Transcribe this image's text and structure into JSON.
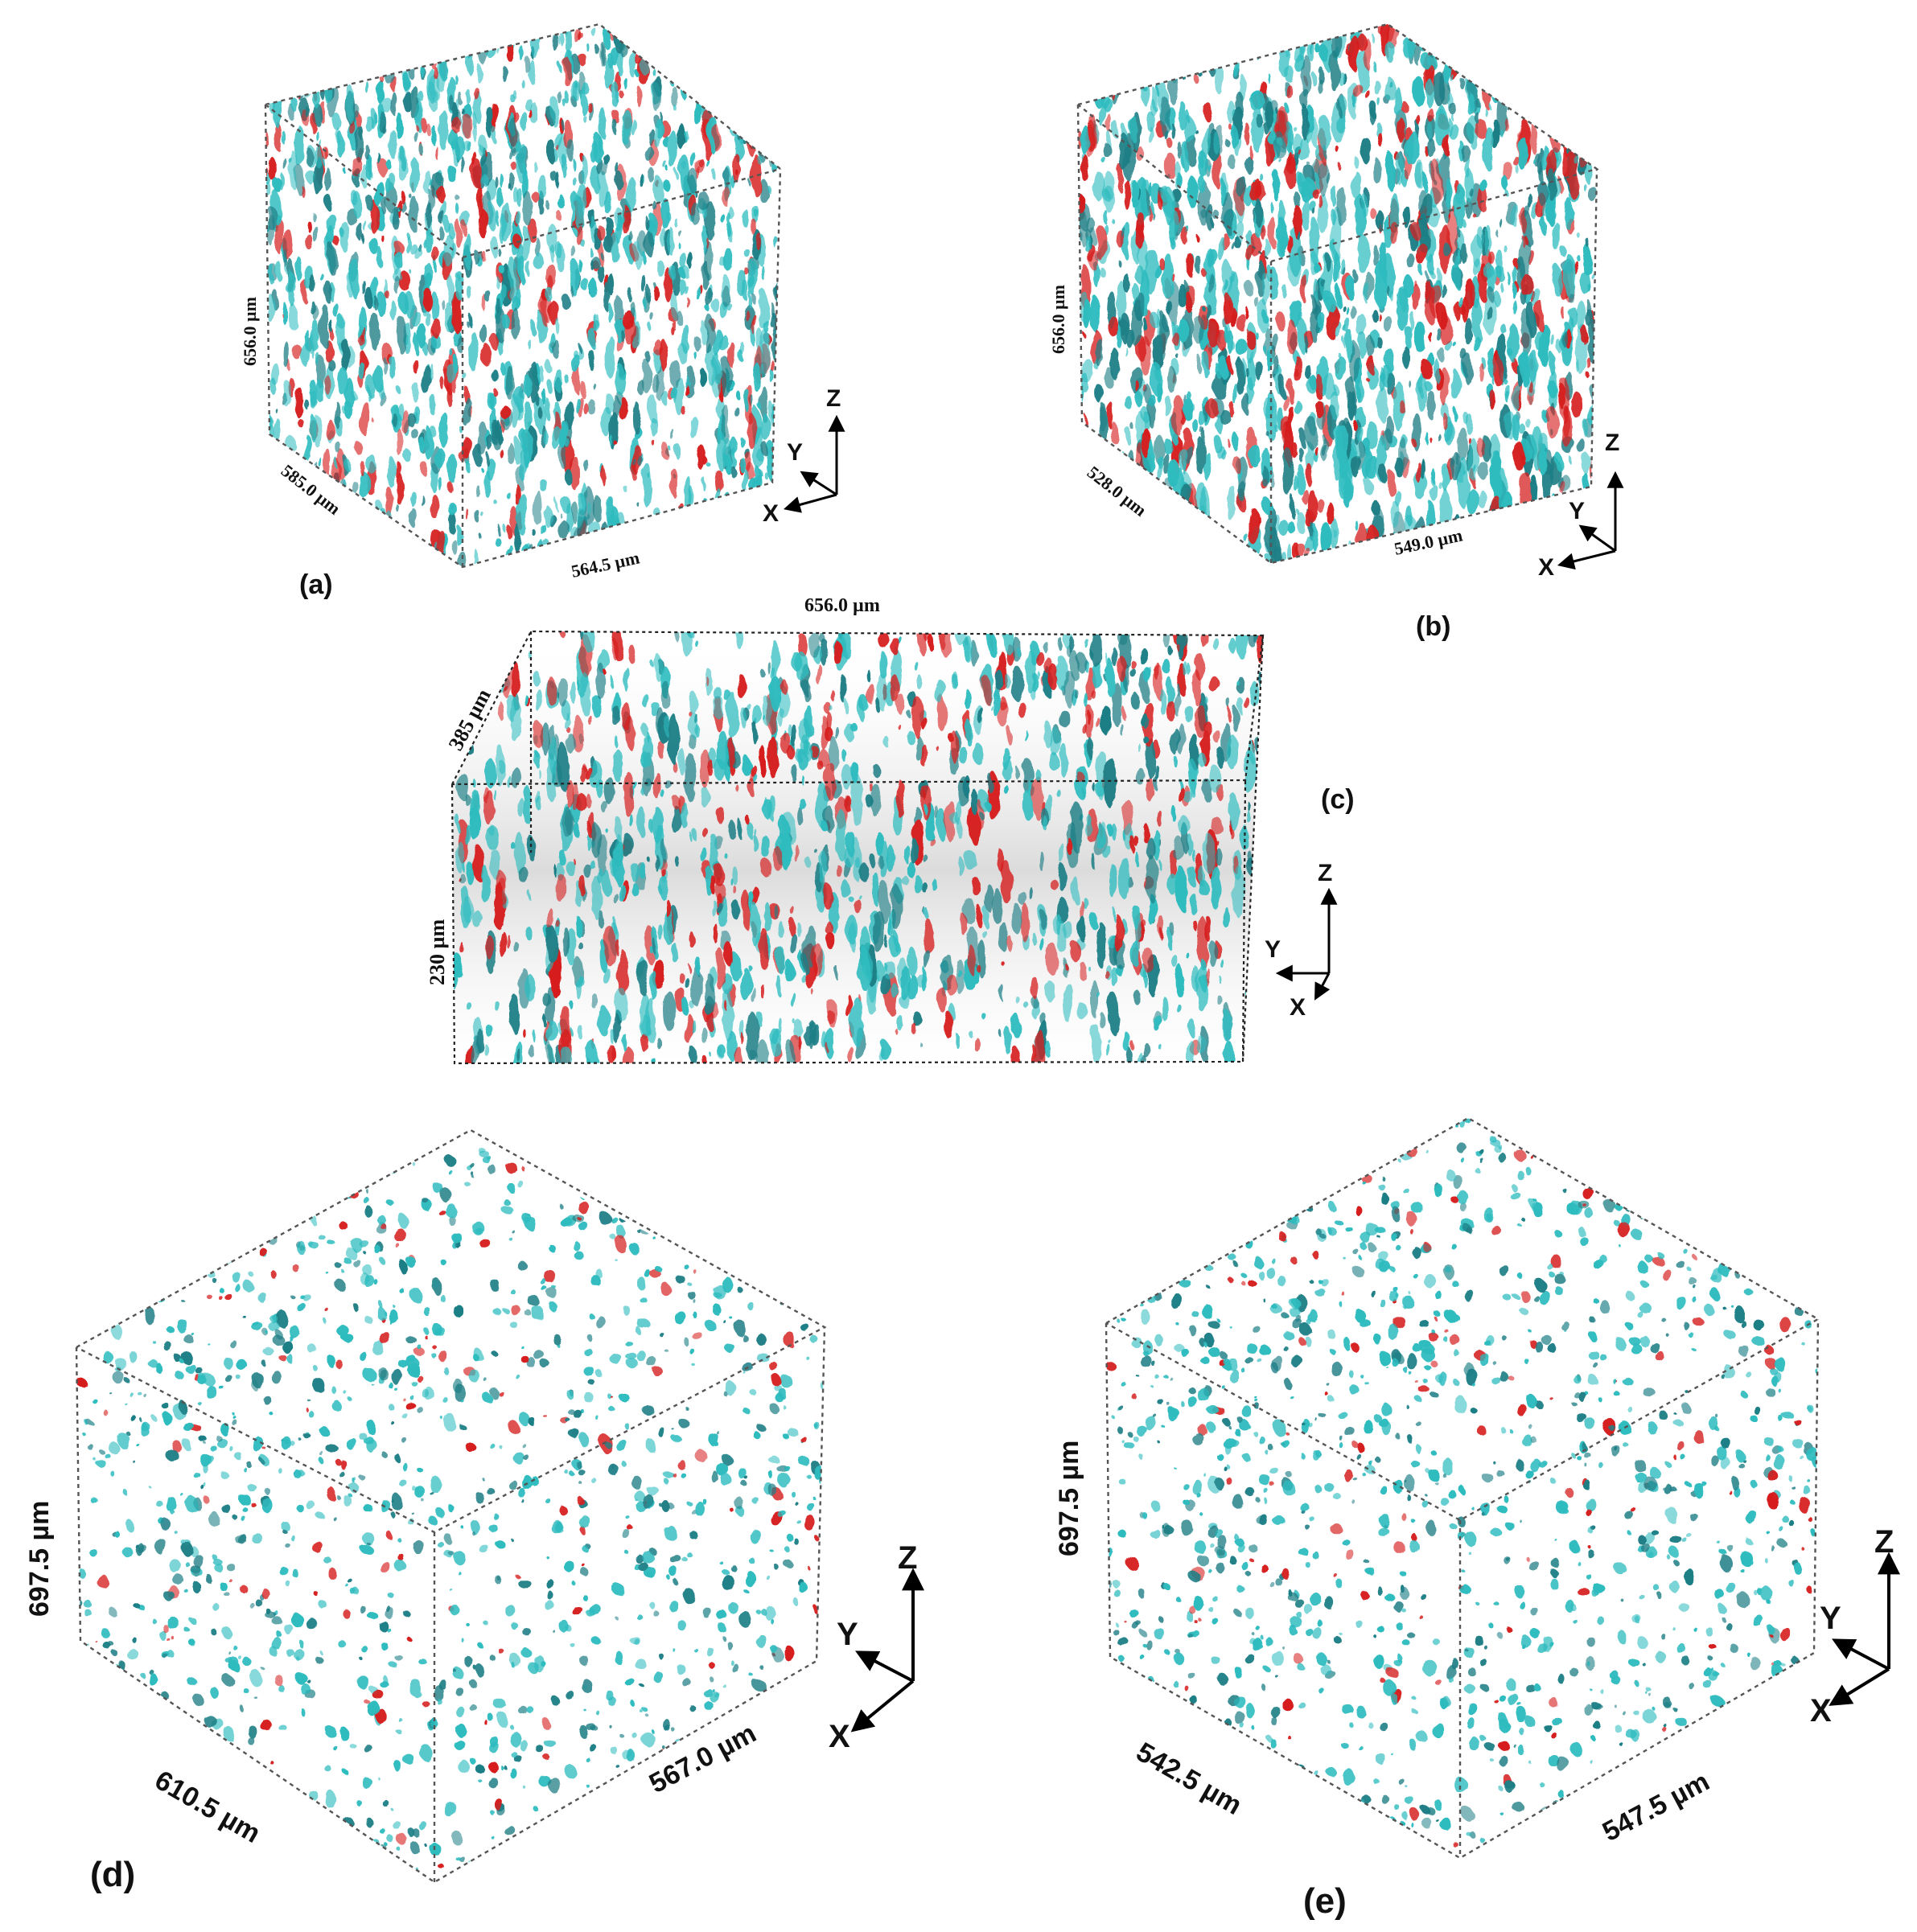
{
  "figure": {
    "description_colors": {
      "phase_primary": "#2fbcbf",
      "phase_secondary": "#d61f1f",
      "edge": "#555555",
      "background": "#ffffff"
    },
    "panels": [
      {
        "id": "a",
        "label": "(a)",
        "dim_height": "656.0 µm",
        "dim_depth": "585.0 µm",
        "dim_width": "564.5 µm",
        "axes": {
          "z": "Z",
          "y": "Y",
          "x": "X"
        }
      },
      {
        "id": "b",
        "label": "(b)",
        "dim_height": "656.0 µm",
        "dim_depth": "528.0 µm",
        "dim_width": "549.0 µm",
        "axes": {
          "z": "Z",
          "y": "Y",
          "x": "X"
        }
      },
      {
        "id": "c",
        "label": "(c)",
        "dim_top": "656.0 µm",
        "dim_depth": "385 µm",
        "dim_height": "230 µm",
        "axes": {
          "z": "Z",
          "y": "Y",
          "x": "X"
        }
      },
      {
        "id": "d",
        "label": "(d)",
        "dim_height": "697.5 µm",
        "dim_depth": "610.5 µm",
        "dim_width": "567.0 µm",
        "axes": {
          "z": "Z",
          "y": "Y",
          "x": "X"
        }
      },
      {
        "id": "e",
        "label": "(e)",
        "dim_height": "697.5 µm",
        "dim_depth": "542.5 µm",
        "dim_width": "547.5 µm",
        "axes": {
          "z": "Z",
          "y": "Y",
          "x": "X"
        }
      }
    ]
  }
}
